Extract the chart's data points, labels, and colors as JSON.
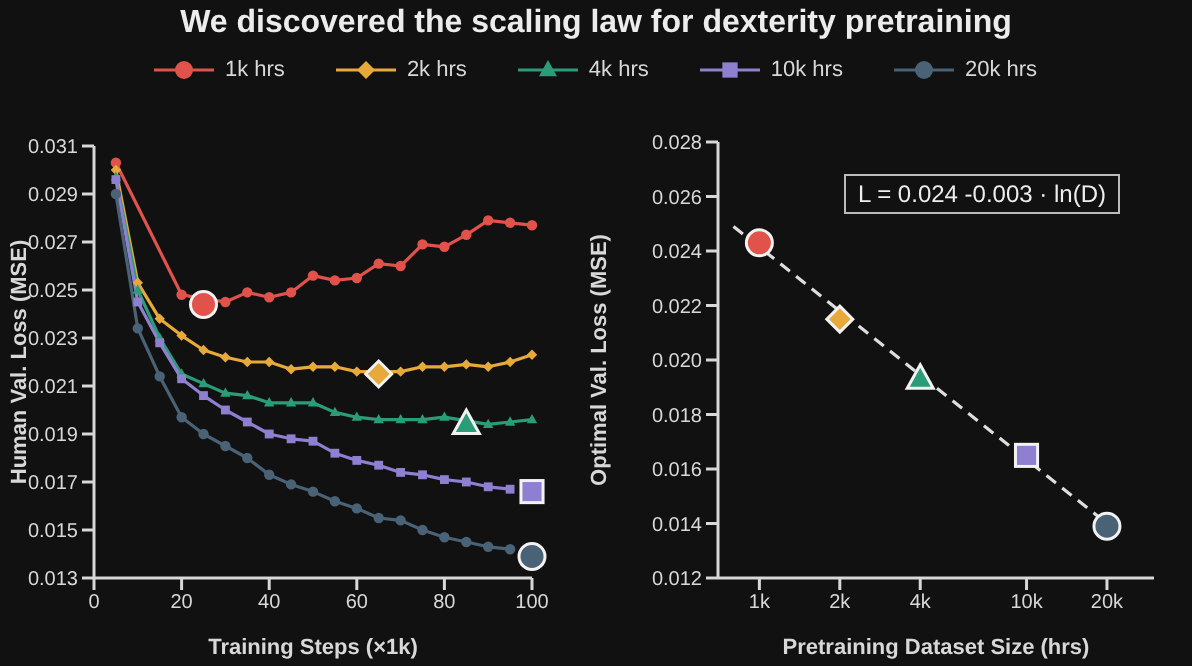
{
  "chart_data": [
    {
      "type": "line",
      "title": "We discovered the scaling law for dexterity pretraining",
      "xlabel": "Training Steps (×1k)",
      "ylabel": "Human Val. Loss (MSE)",
      "xlim": [
        0,
        100
      ],
      "xticks": [
        0,
        20,
        40,
        60,
        80,
        100
      ],
      "ylim": [
        0.013,
        0.031
      ],
      "yticks": [
        0.013,
        0.015,
        0.017,
        0.019,
        0.021,
        0.023,
        0.025,
        0.027,
        0.029,
        0.031
      ],
      "legend": "top",
      "series": [
        {
          "name": "1k hrs",
          "color": "#e0524a",
          "marker": "circle",
          "x": [
            5,
            20,
            30,
            35,
            40,
            45,
            50,
            55,
            60,
            65,
            70,
            75,
            80,
            85,
            90,
            95,
            100
          ],
          "values": [
            0.0303,
            0.0248,
            0.0245,
            0.0249,
            0.0247,
            0.0249,
            0.0256,
            0.0254,
            0.0255,
            0.0261,
            0.026,
            0.0269,
            0.0268,
            0.0273,
            0.0279,
            0.0278,
            0.0277
          ]
        },
        {
          "name": "2k hrs",
          "color": "#e6a93a",
          "marker": "diamond",
          "x": [
            5,
            10,
            15,
            20,
            25,
            30,
            35,
            40,
            45,
            50,
            55,
            60,
            70,
            75,
            80,
            85,
            90,
            95,
            100
          ],
          "values": [
            0.03,
            0.0253,
            0.0238,
            0.0231,
            0.0225,
            0.0222,
            0.022,
            0.022,
            0.0217,
            0.0218,
            0.0218,
            0.0216,
            0.0216,
            0.0218,
            0.0218,
            0.0219,
            0.0218,
            0.022,
            0.0223
          ]
        },
        {
          "name": "4k hrs",
          "color": "#2a9d78",
          "marker": "triangle",
          "x": [
            5,
            10,
            15,
            20,
            25,
            30,
            35,
            40,
            45,
            50,
            55,
            60,
            65,
            70,
            75,
            80,
            90,
            95,
            100
          ],
          "values": [
            0.0297,
            0.025,
            0.023,
            0.0215,
            0.0211,
            0.0207,
            0.0206,
            0.0203,
            0.0203,
            0.0203,
            0.0199,
            0.0197,
            0.0196,
            0.0196,
            0.0196,
            0.0197,
            0.0194,
            0.0195,
            0.0196
          ]
        },
        {
          "name": "10k hrs",
          "color": "#8f7fd0",
          "marker": "square",
          "x": [
            5,
            10,
            15,
            20,
            25,
            30,
            35,
            40,
            45,
            50,
            55,
            60,
            65,
            70,
            75,
            80,
            85,
            90,
            95
          ],
          "values": [
            0.0296,
            0.0245,
            0.0228,
            0.0213,
            0.0206,
            0.02,
            0.0195,
            0.019,
            0.0188,
            0.0187,
            0.0182,
            0.0179,
            0.0177,
            0.0174,
            0.0173,
            0.0171,
            0.017,
            0.0168,
            0.0167
          ]
        },
        {
          "name": "20k hrs",
          "color": "#4a6275",
          "marker": "circle",
          "x": [
            5,
            10,
            15,
            20,
            25,
            30,
            35,
            40,
            45,
            50,
            55,
            60,
            65,
            70,
            75,
            80,
            85,
            90,
            95
          ],
          "values": [
            0.029,
            0.0234,
            0.0214,
            0.0197,
            0.019,
            0.0185,
            0.018,
            0.0173,
            0.0169,
            0.0166,
            0.0162,
            0.0159,
            0.0155,
            0.0154,
            0.015,
            0.0147,
            0.0145,
            0.0143,
            0.0142
          ]
        },
        {
          "type": "scatter",
          "color": "#e0524a",
          "marker": "circle",
          "x": [
            25
          ],
          "values": [
            0.0244
          ]
        },
        {
          "type": "scatter",
          "color": "#e6a93a",
          "marker": "diamond",
          "x": [
            65
          ],
          "values": [
            0.0215
          ]
        },
        {
          "type": "scatter",
          "color": "#2a9d78",
          "marker": "triangle",
          "x": [
            85
          ],
          "values": [
            0.0194
          ]
        },
        {
          "type": "scatter",
          "color": "#8f7fd0",
          "marker": "square",
          "x": [
            100
          ],
          "values": [
            0.0166
          ]
        },
        {
          "type": "scatter",
          "color": "#4a6275",
          "marker": "circle",
          "x": [
            100
          ],
          "values": [
            0.0139
          ]
        }
      ]
    },
    {
      "type": "scatter",
      "xlabel": "Pretraining Dataset Size (hrs)",
      "ylabel": "Optimal Val. Loss (MSE)",
      "log": "x",
      "xlim": [
        700,
        30000
      ],
      "xticks": [
        {
          "value": 1000,
          "label": "1k"
        },
        {
          "value": 2000,
          "label": "2k"
        },
        {
          "value": 4000,
          "label": "4k"
        },
        {
          "value": 10000,
          "label": "10k"
        },
        {
          "value": 20000,
          "label": "20k"
        }
      ],
      "ylim": [
        0.012,
        0.028
      ],
      "yticks": [
        0.012,
        0.014,
        0.016,
        0.018,
        {
          "value": 0.02,
          "label": "0.020"
        },
        0.022,
        0.024,
        0.026,
        0.028
      ],
      "annotations": [
        "L = 0.024 -0.003 · ln(D)"
      ],
      "series": [
        {
          "type": "line",
          "color": "#dddddd",
          "marker": "none",
          "line_style": "dashed",
          "x": [
            800,
            20000
          ],
          "values": [
            0.0249,
            0.014
          ]
        },
        {
          "color": "#e0524a",
          "marker": "circle",
          "x": [
            1000
          ],
          "values": [
            0.0243
          ]
        },
        {
          "color": "#e6a93a",
          "marker": "diamond",
          "x": [
            2000
          ],
          "values": [
            0.0215
          ]
        },
        {
          "color": "#2a9d78",
          "marker": "triangle",
          "x": [
            4000
          ],
          "values": [
            0.0193
          ]
        },
        {
          "color": "#8f7fd0",
          "marker": "square",
          "x": [
            10000
          ],
          "values": [
            0.0165
          ]
        },
        {
          "color": "#4a6275",
          "marker": "circle",
          "x": [
            20000
          ],
          "values": [
            0.0139
          ]
        }
      ]
    }
  ]
}
